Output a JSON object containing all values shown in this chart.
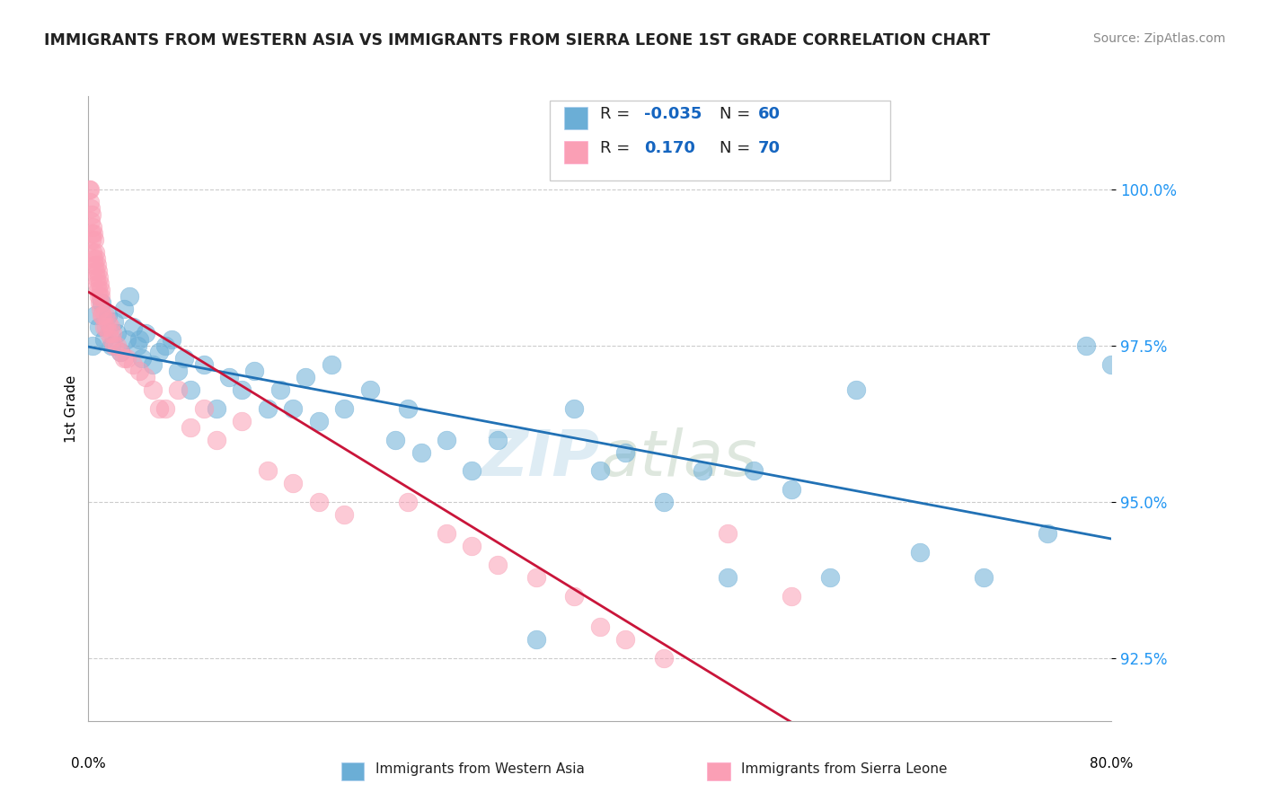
{
  "title": "IMMIGRANTS FROM WESTERN ASIA VS IMMIGRANTS FROM SIERRA LEONE 1ST GRADE CORRELATION CHART",
  "source": "Source: ZipAtlas.com",
  "ylabel": "1st Grade",
  "xlim": [
    0.0,
    80.0
  ],
  "ylim": [
    91.5,
    101.5
  ],
  "yticks": [
    92.5,
    95.0,
    97.5,
    100.0
  ],
  "ytick_labels": [
    "92.5%",
    "95.0%",
    "97.5%",
    "100.0%"
  ],
  "blue_color": "#6baed6",
  "pink_color": "#fa9fb5",
  "blue_line_color": "#2171b5",
  "pink_line_color": "#c9153a",
  "watermark_zip": "ZIP",
  "watermark_atlas": "atlas",
  "blue_scatter_x": [
    0.3,
    0.5,
    0.8,
    1.0,
    1.2,
    1.5,
    1.8,
    2.0,
    2.2,
    2.5,
    2.8,
    3.0,
    3.2,
    3.5,
    3.8,
    4.0,
    4.2,
    4.5,
    5.0,
    5.5,
    6.0,
    6.5,
    7.0,
    7.5,
    8.0,
    9.0,
    10.0,
    11.0,
    12.0,
    13.0,
    14.0,
    15.0,
    16.0,
    17.0,
    18.0,
    19.0,
    20.0,
    22.0,
    24.0,
    25.0,
    26.0,
    28.0,
    30.0,
    32.0,
    35.0,
    38.0,
    40.0,
    42.0,
    45.0,
    48.0,
    50.0,
    52.0,
    55.0,
    58.0,
    60.0,
    65.0,
    70.0,
    75.0,
    78.0,
    80.0
  ],
  "blue_scatter_y": [
    97.5,
    98.0,
    97.8,
    98.2,
    97.6,
    98.0,
    97.5,
    97.9,
    97.7,
    97.4,
    98.1,
    97.6,
    98.3,
    97.8,
    97.5,
    97.6,
    97.3,
    97.7,
    97.2,
    97.4,
    97.5,
    97.6,
    97.1,
    97.3,
    96.8,
    97.2,
    96.5,
    97.0,
    96.8,
    97.1,
    96.5,
    96.8,
    96.5,
    97.0,
    96.3,
    97.2,
    96.5,
    96.8,
    96.0,
    96.5,
    95.8,
    96.0,
    95.5,
    96.0,
    92.8,
    96.5,
    95.5,
    95.8,
    95.0,
    95.5,
    93.8,
    95.5,
    95.2,
    93.8,
    96.8,
    94.2,
    93.8,
    94.5,
    97.5,
    97.2
  ],
  "pink_scatter_x": [
    0.05,
    0.08,
    0.12,
    0.15,
    0.18,
    0.22,
    0.25,
    0.28,
    0.32,
    0.35,
    0.38,
    0.42,
    0.45,
    0.48,
    0.52,
    0.55,
    0.58,
    0.62,
    0.65,
    0.68,
    0.72,
    0.75,
    0.78,
    0.82,
    0.85,
    0.88,
    0.92,
    0.95,
    0.98,
    1.0,
    1.1,
    1.2,
    1.3,
    1.4,
    1.5,
    1.6,
    1.7,
    1.8,
    1.9,
    2.0,
    2.2,
    2.5,
    2.8,
    3.0,
    3.5,
    4.0,
    4.5,
    5.0,
    5.5,
    6.0,
    7.0,
    8.0,
    9.0,
    10.0,
    12.0,
    14.0,
    16.0,
    18.0,
    20.0,
    25.0,
    28.0,
    30.0,
    32.0,
    35.0,
    38.0,
    40.0,
    42.0,
    45.0,
    50.0,
    55.0
  ],
  "pink_scatter_y": [
    100.0,
    99.8,
    100.0,
    99.5,
    99.7,
    99.3,
    99.6,
    99.2,
    99.4,
    99.0,
    99.3,
    98.9,
    99.2,
    98.8,
    99.0,
    98.7,
    98.9,
    98.6,
    98.8,
    98.5,
    98.7,
    98.4,
    98.6,
    98.3,
    98.5,
    98.2,
    98.4,
    98.1,
    98.3,
    98.0,
    98.0,
    97.8,
    98.0,
    97.8,
    97.9,
    97.7,
    97.8,
    97.6,
    97.7,
    97.5,
    97.5,
    97.4,
    97.3,
    97.3,
    97.2,
    97.1,
    97.0,
    96.8,
    96.5,
    96.5,
    96.8,
    96.2,
    96.5,
    96.0,
    96.3,
    95.5,
    95.3,
    95.0,
    94.8,
    95.0,
    94.5,
    94.3,
    94.0,
    93.8,
    93.5,
    93.0,
    92.8,
    92.5,
    94.5,
    93.5
  ],
  "legend1_r": "R = ",
  "legend1_rv": "-0.035",
  "legend1_n": "N = 60",
  "legend2_r": "R =",
  "legend2_rv": "0.170",
  "legend2_n": "N = 70",
  "bottom_label1": "Immigrants from Western Asia",
  "bottom_label2": "Immigrants from Sierra Leone"
}
